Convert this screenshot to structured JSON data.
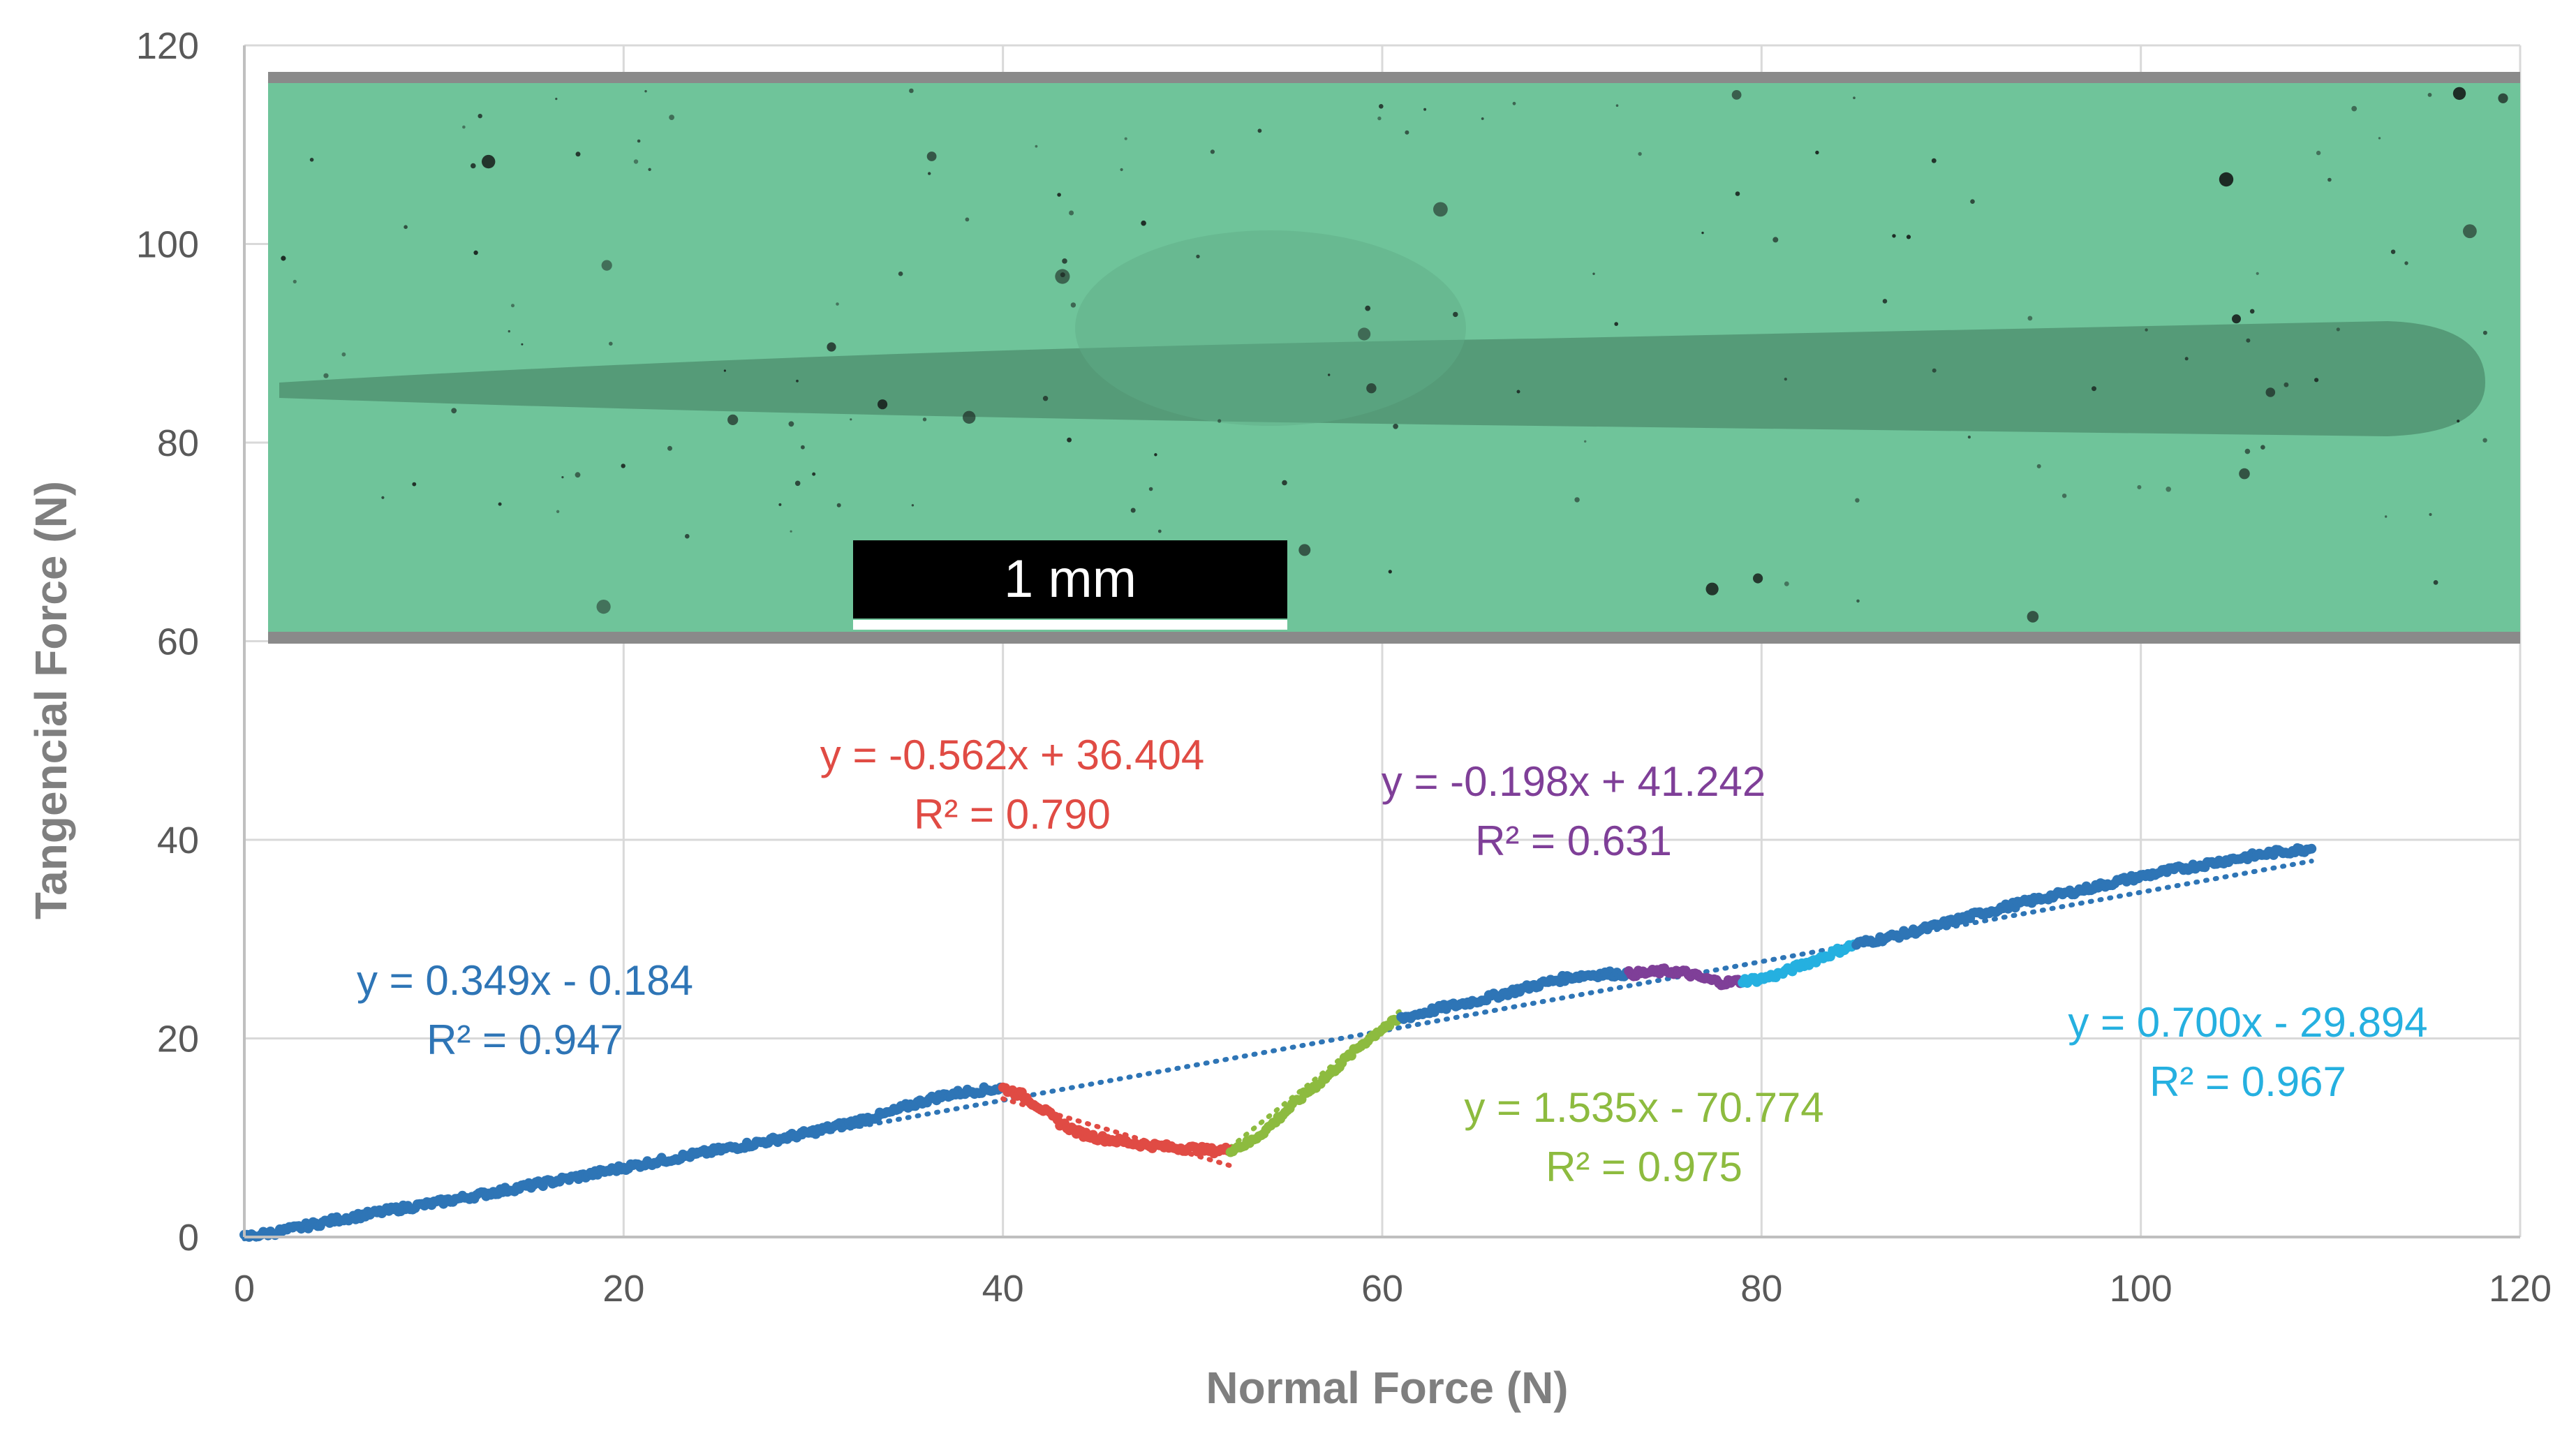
{
  "chart_data": {
    "type": "scatter",
    "title": "",
    "xlabel": "Normal Force (N)",
    "ylabel": "Tangencial Force (N)",
    "xlim": [
      0,
      120
    ],
    "ylim": [
      0,
      120
    ],
    "x_ticks": [
      "0",
      "20",
      "40",
      "60",
      "80",
      "100",
      "120"
    ],
    "y_ticks": [
      "0",
      "20",
      "40",
      "60",
      "80",
      "100",
      "120"
    ],
    "grid": true,
    "legend": "none",
    "inset_image": {
      "description_free": true,
      "scale_bar_label": "1 mm",
      "colors": {
        "background": "#6fc49a",
        "track": "#3f7a5c",
        "band": "#8a8a8a"
      }
    },
    "series": [
      {
        "color": "#2e75b6",
        "points": [
          [
            0,
            0
          ],
          [
            1,
            0.3
          ],
          [
            2,
            0.6
          ],
          [
            3,
            1.0
          ],
          [
            4,
            1.4
          ],
          [
            5,
            1.8
          ],
          [
            6,
            2.1
          ],
          [
            8,
            2.8
          ],
          [
            10,
            3.4
          ],
          [
            12,
            4.1
          ],
          [
            14,
            4.8
          ],
          [
            16,
            5.5
          ],
          [
            18,
            6.2
          ],
          [
            20,
            7.0
          ],
          [
            22,
            7.7
          ],
          [
            24,
            8.4
          ],
          [
            26,
            9.1
          ],
          [
            28,
            9.8
          ],
          [
            30,
            10.6
          ],
          [
            32,
            11.5
          ],
          [
            34,
            12.5
          ],
          [
            35,
            13.2
          ],
          [
            36,
            13.8
          ],
          [
            37,
            14.3
          ],
          [
            38,
            14.6
          ],
          [
            39,
            14.8
          ],
          [
            40,
            15.0
          ]
        ]
      },
      {
        "color": "#e04b44",
        "points": [
          [
            40,
            15.0
          ],
          [
            41,
            14.3
          ],
          [
            42,
            13.0
          ],
          [
            43,
            11.5
          ],
          [
            44,
            10.5
          ],
          [
            45,
            10.0
          ],
          [
            46,
            9.7
          ],
          [
            47,
            9.4
          ],
          [
            48,
            9.2
          ],
          [
            49,
            9.0
          ],
          [
            50,
            8.9
          ],
          [
            51,
            8.7
          ],
          [
            52,
            8.8
          ]
        ]
      },
      {
        "color": "#8dbb3f",
        "points": [
          [
            52,
            8.8
          ],
          [
            53,
            9.5
          ],
          [
            54,
            11.0
          ],
          [
            55,
            12.8
          ],
          [
            56,
            14.5
          ],
          [
            57,
            16.0
          ],
          [
            58,
            17.8
          ],
          [
            59,
            19.5
          ],
          [
            60,
            21.0
          ],
          [
            61,
            22.0
          ]
        ]
      },
      {
        "color": "#2e75b6",
        "points": [
          [
            61,
            22.0
          ],
          [
            62,
            22.5
          ],
          [
            63,
            23.0
          ],
          [
            64,
            23.4
          ],
          [
            65,
            23.8
          ],
          [
            66,
            24.3
          ],
          [
            67,
            24.8
          ],
          [
            68,
            25.3
          ],
          [
            69,
            25.8
          ],
          [
            70,
            26.2
          ],
          [
            71,
            26.4
          ],
          [
            72,
            26.5
          ],
          [
            73,
            26.5
          ]
        ]
      },
      {
        "color": "#7f3f98",
        "points": [
          [
            73,
            26.5
          ],
          [
            74,
            26.6
          ],
          [
            75,
            26.8
          ],
          [
            76,
            26.6
          ],
          [
            77,
            26.0
          ],
          [
            78,
            25.6
          ],
          [
            79,
            25.8
          ]
        ]
      },
      {
        "color": "#25b0e0",
        "points": [
          [
            79,
            25.8
          ],
          [
            80,
            26.0
          ],
          [
            81,
            26.5
          ],
          [
            82,
            27.3
          ],
          [
            83,
            28.0
          ],
          [
            84,
            28.8
          ],
          [
            85,
            29.5
          ]
        ]
      },
      {
        "color": "#2e75b6",
        "points": [
          [
            85,
            29.5
          ],
          [
            87,
            30.3
          ],
          [
            89,
            31.2
          ],
          [
            91,
            32.3
          ],
          [
            93,
            33.3
          ],
          [
            95,
            34.2
          ],
          [
            97,
            35.0
          ],
          [
            99,
            35.9
          ],
          [
            101,
            36.7
          ],
          [
            103,
            37.4
          ],
          [
            105,
            38.1
          ],
          [
            107,
            38.7
          ],
          [
            109,
            39.1
          ]
        ]
      }
    ],
    "trendlines": [
      {
        "color": "#2e75b6",
        "slope": 0.349,
        "intercept": -0.184,
        "x_range": [
          0,
          109
        ],
        "equation": "y = 0.349x - 0.184",
        "r2": "R² = 0.947"
      },
      {
        "color": "#e04b44",
        "slope": -0.562,
        "intercept": 36.404,
        "x_range": [
          40,
          52
        ],
        "equation": "y = -0.562x + 36.404",
        "r2": "R² = 0.790"
      },
      {
        "color": "#8dbb3f",
        "slope": 1.535,
        "intercept": -70.774,
        "x_range": [
          52,
          61
        ],
        "equation": "y = 1.535x - 70.774",
        "r2": "R² = 0.975"
      },
      {
        "color": "#7f3f98",
        "slope": -0.198,
        "intercept": 41.242,
        "x_range": [
          73,
          79
        ],
        "equation": "y = -0.198x + 41.242",
        "r2": "R² = 0.631"
      },
      {
        "color": "#25b0e0",
        "slope": 0.7,
        "intercept": -29.894,
        "x_range": [
          79,
          85
        ],
        "equation": "y = 0.700x - 29.894",
        "r2": "R² = 0.967"
      }
    ]
  }
}
